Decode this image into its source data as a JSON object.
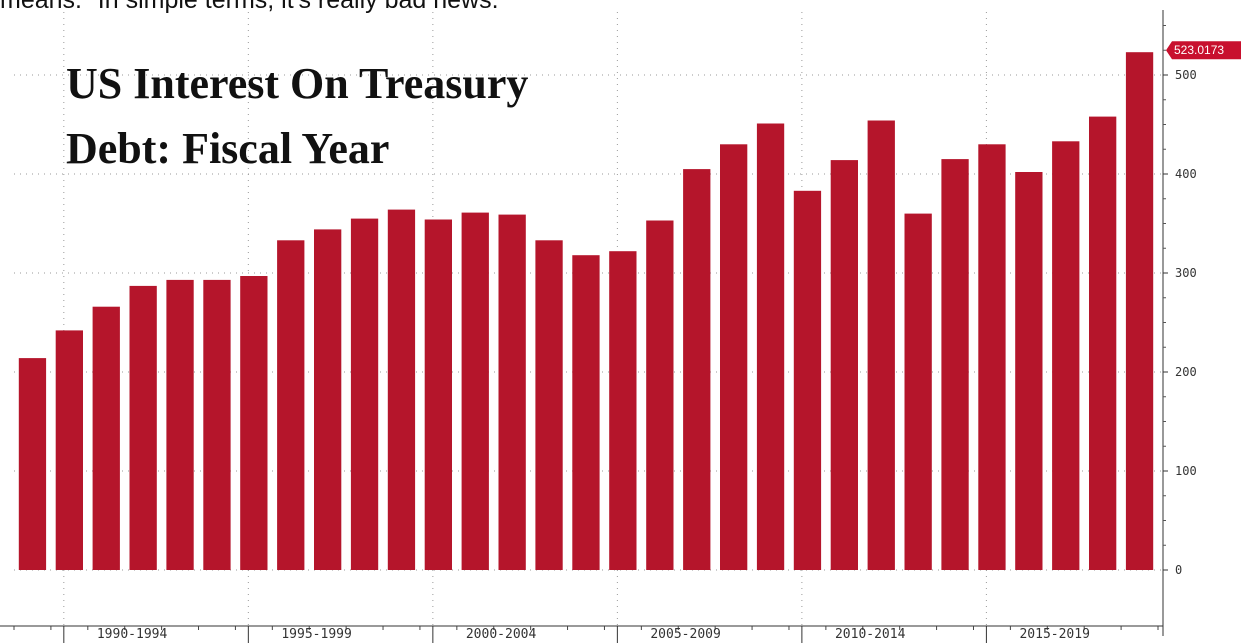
{
  "caption": "means.\" In simple terms, it's really bad news.",
  "chart_data": {
    "type": "bar",
    "title_lines": [
      "US Interest On Treasury",
      "Debt: Fiscal Year"
    ],
    "values": [
      214,
      242,
      266,
      287,
      293,
      293,
      297,
      333,
      344,
      355,
      364,
      354,
      361,
      359,
      333,
      318,
      322,
      353,
      405,
      430,
      451,
      383,
      414,
      454,
      360,
      415,
      430,
      402,
      433,
      458,
      523.0173
    ],
    "period_labels": [
      "1990-1994",
      "1995-1999",
      "2000-2004",
      "2005-2009",
      "2010-2014",
      "2015-2019"
    ],
    "y_ticks": [
      0,
      100,
      200,
      300,
      400,
      500
    ],
    "ylim": [
      -50,
      560
    ],
    "last_value_label": "523.0173",
    "bar_color": "#b5152b",
    "badge_color": "#c8102e",
    "grid": true
  }
}
